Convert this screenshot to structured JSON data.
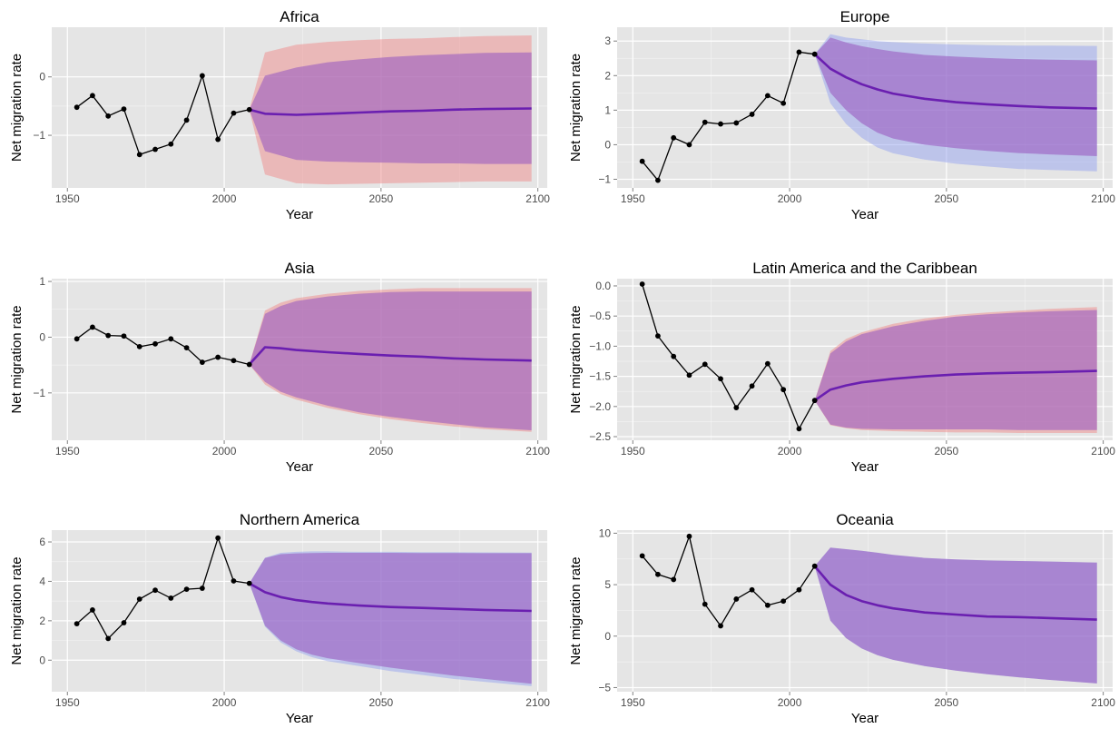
{
  "chart_data": [
    {
      "type": "line",
      "title": "Africa",
      "xlabel": "Year",
      "ylabel": "Net migration rate",
      "xlim": [
        1945,
        2103
      ],
      "ylim": [
        -1.9,
        0.85
      ],
      "xticks": [
        1950,
        2000,
        2050,
        2100
      ],
      "yticks": [
        0,
        -1
      ],
      "band_color": "#f08080",
      "observed": {
        "x": [
          1953,
          1958,
          1963,
          1968,
          1973,
          1978,
          1983,
          1988,
          1993,
          1998,
          2003,
          2008
        ],
        "y": [
          -0.52,
          -0.32,
          -0.67,
          -0.55,
          -1.33,
          -1.24,
          -1.15,
          -0.74,
          0.02,
          -1.07,
          -0.62,
          -0.56
        ]
      },
      "projection": {
        "x": [
          2008,
          2013,
          2023,
          2033,
          2043,
          2053,
          2063,
          2073,
          2083,
          2098
        ],
        "median": [
          -0.56,
          -0.63,
          -0.65,
          -0.63,
          -0.61,
          -0.59,
          -0.58,
          -0.56,
          -0.55,
          -0.54
        ],
        "band_outer_lower": [
          -0.56,
          -1.67,
          -1.82,
          -1.84,
          -1.83,
          -1.82,
          -1.81,
          -1.8,
          -1.79,
          -1.79
        ],
        "band_outer_upper": [
          -0.56,
          0.42,
          0.55,
          0.6,
          0.63,
          0.65,
          0.66,
          0.68,
          0.7,
          0.71
        ],
        "band_inner_lower": [
          -0.56,
          -1.27,
          -1.42,
          -1.45,
          -1.46,
          -1.47,
          -1.48,
          -1.48,
          -1.49,
          -1.49
        ],
        "band_inner_upper": [
          -0.56,
          0.02,
          0.16,
          0.25,
          0.3,
          0.34,
          0.37,
          0.39,
          0.41,
          0.42
        ]
      }
    },
    {
      "type": "line",
      "title": "Europe",
      "xlabel": "Year",
      "ylabel": "Net migration rate",
      "xlim": [
        1945,
        2103
      ],
      "ylim": [
        -1.25,
        3.4
      ],
      "xticks": [
        1950,
        2000,
        2050,
        2100
      ],
      "yticks": [
        3,
        2,
        1,
        0,
        -1
      ],
      "band_color": "#8c9cf0",
      "observed": {
        "x": [
          1953,
          1958,
          1963,
          1968,
          1973,
          1978,
          1983,
          1988,
          1993,
          1998,
          2003,
          2008
        ],
        "y": [
          -0.48,
          -1.03,
          0.2,
          0.0,
          0.65,
          0.6,
          0.63,
          0.88,
          1.42,
          1.2,
          2.68,
          2.62
        ]
      },
      "projection": {
        "x": [
          2008,
          2013,
          2018,
          2023,
          2028,
          2033,
          2043,
          2053,
          2063,
          2073,
          2083,
          2098
        ],
        "median": [
          2.62,
          2.2,
          1.95,
          1.75,
          1.6,
          1.48,
          1.33,
          1.23,
          1.17,
          1.12,
          1.08,
          1.05
        ],
        "band_outer_lower": [
          2.62,
          1.2,
          0.6,
          0.2,
          -0.08,
          -0.25,
          -0.43,
          -0.55,
          -0.63,
          -0.7,
          -0.73,
          -0.77
        ],
        "band_outer_upper": [
          2.62,
          3.2,
          3.1,
          3.05,
          3.0,
          2.97,
          2.93,
          2.9,
          2.88,
          2.87,
          2.87,
          2.86
        ],
        "band_inner_lower": [
          2.62,
          1.5,
          1.0,
          0.62,
          0.35,
          0.18,
          0.0,
          -0.1,
          -0.18,
          -0.24,
          -0.28,
          -0.33
        ],
        "band_inner_upper": [
          2.62,
          3.1,
          2.96,
          2.85,
          2.77,
          2.7,
          2.6,
          2.55,
          2.51,
          2.48,
          2.46,
          2.44
        ]
      }
    },
    {
      "type": "line",
      "title": "Asia",
      "xlabel": "Year",
      "ylabel": "Net migration rate",
      "xlim": [
        1945,
        2103
      ],
      "ylim": [
        -1.85,
        1.05
      ],
      "xticks": [
        1950,
        2000,
        2050,
        2100
      ],
      "yticks": [
        1,
        0,
        -1
      ],
      "band_color": "#f08080",
      "observed": {
        "x": [
          1953,
          1958,
          1963,
          1968,
          1973,
          1978,
          1983,
          1988,
          1993,
          1998,
          2003,
          2008
        ],
        "y": [
          -0.03,
          0.18,
          0.03,
          0.02,
          -0.17,
          -0.12,
          -0.03,
          -0.19,
          -0.45,
          -0.36,
          -0.42,
          -0.49
        ]
      },
      "projection": {
        "x": [
          2008,
          2013,
          2018,
          2023,
          2033,
          2043,
          2053,
          2063,
          2073,
          2083,
          2098
        ],
        "median": [
          -0.49,
          -0.18,
          -0.2,
          -0.23,
          -0.27,
          -0.3,
          -0.33,
          -0.35,
          -0.38,
          -0.4,
          -0.42
        ],
        "band_outer_lower": [
          -0.49,
          -0.85,
          -1.02,
          -1.12,
          -1.27,
          -1.38,
          -1.47,
          -1.54,
          -1.6,
          -1.65,
          -1.7
        ],
        "band_outer_upper": [
          -0.49,
          0.48,
          0.62,
          0.7,
          0.78,
          0.83,
          0.86,
          0.88,
          0.88,
          0.88,
          0.88
        ],
        "band_inner_lower": [
          -0.49,
          -0.8,
          -0.98,
          -1.08,
          -1.23,
          -1.35,
          -1.43,
          -1.5,
          -1.56,
          -1.62,
          -1.67
        ],
        "band_inner_upper": [
          -0.49,
          0.42,
          0.56,
          0.65,
          0.73,
          0.78,
          0.81,
          0.82,
          0.82,
          0.82,
          0.82
        ]
      }
    },
    {
      "type": "line",
      "title": "Latin America and the Caribbean",
      "xlabel": "Year",
      "ylabel": "Net migration rate",
      "xlim": [
        1945,
        2103
      ],
      "ylim": [
        -2.56,
        0.12
      ],
      "xticks": [
        1950,
        2000,
        2050,
        2100
      ],
      "yticks": [
        0.0,
        -0.5,
        -1.0,
        -1.5,
        -2.0,
        -2.5
      ],
      "ytick_labels": [
        "0.0",
        "−0.5",
        "−1.0",
        "−1.5",
        "−2.0",
        "−2.5"
      ],
      "band_color": "#f08080",
      "observed": {
        "x": [
          1953,
          1958,
          1963,
          1968,
          1973,
          1978,
          1983,
          1988,
          1993,
          1998,
          2003,
          2008
        ],
        "y": [
          0.03,
          -0.83,
          -1.17,
          -1.48,
          -1.3,
          -1.54,
          -2.02,
          -1.66,
          -1.29,
          -1.72,
          -2.37,
          -1.9
        ]
      },
      "projection": {
        "x": [
          2008,
          2013,
          2018,
          2023,
          2033,
          2043,
          2053,
          2063,
          2073,
          2083,
          2098
        ],
        "median": [
          -1.9,
          -1.72,
          -1.65,
          -1.6,
          -1.54,
          -1.5,
          -1.47,
          -1.45,
          -1.44,
          -1.43,
          -1.41
        ],
        "band_outer_lower": [
          -1.9,
          -2.31,
          -2.36,
          -2.39,
          -2.41,
          -2.42,
          -2.43,
          -2.43,
          -2.44,
          -2.44,
          -2.44
        ],
        "band_outer_upper": [
          -1.9,
          -1.08,
          -0.88,
          -0.77,
          -0.63,
          -0.54,
          -0.48,
          -0.44,
          -0.41,
          -0.38,
          -0.35
        ],
        "band_inner_lower": [
          -1.9,
          -2.3,
          -2.35,
          -2.37,
          -2.38,
          -2.38,
          -2.38,
          -2.38,
          -2.39,
          -2.39,
          -2.39
        ],
        "band_inner_upper": [
          -1.9,
          -1.12,
          -0.92,
          -0.8,
          -0.67,
          -0.58,
          -0.51,
          -0.47,
          -0.44,
          -0.42,
          -0.4
        ]
      }
    },
    {
      "type": "line",
      "title": "Northern America",
      "xlabel": "Year",
      "ylabel": "Net migration rate",
      "xlim": [
        1945,
        2103
      ],
      "ylim": [
        -1.6,
        6.6
      ],
      "xticks": [
        1950,
        2000,
        2050,
        2100
      ],
      "yticks": [
        6,
        4,
        2,
        0
      ],
      "band_color": "#8c9cf0",
      "observed": {
        "x": [
          1953,
          1958,
          1963,
          1968,
          1973,
          1978,
          1983,
          1988,
          1993,
          1998,
          2003,
          2008
        ],
        "y": [
          1.85,
          2.55,
          1.1,
          1.9,
          3.1,
          3.55,
          3.15,
          3.6,
          3.65,
          6.2,
          4.02,
          3.9
        ]
      },
      "projection": {
        "x": [
          2008,
          2013,
          2018,
          2023,
          2028,
          2033,
          2043,
          2053,
          2063,
          2073,
          2083,
          2098
        ],
        "median": [
          3.9,
          3.45,
          3.2,
          3.05,
          2.95,
          2.88,
          2.77,
          2.7,
          2.65,
          2.6,
          2.55,
          2.5
        ],
        "band_outer_lower": [
          3.9,
          1.7,
          0.9,
          0.45,
          0.15,
          -0.05,
          -0.3,
          -0.55,
          -0.75,
          -0.95,
          -1.1,
          -1.32
        ],
        "band_outer_upper": [
          3.9,
          5.2,
          5.45,
          5.5,
          5.52,
          5.52,
          5.5,
          5.5,
          5.48,
          5.48,
          5.47,
          5.46
        ],
        "band_inner_lower": [
          3.9,
          1.75,
          1.0,
          0.55,
          0.28,
          0.1,
          -0.15,
          -0.38,
          -0.58,
          -0.78,
          -0.95,
          -1.2
        ],
        "band_inner_upper": [
          3.9,
          5.18,
          5.38,
          5.42,
          5.44,
          5.45,
          5.45,
          5.45,
          5.44,
          5.44,
          5.43,
          5.43
        ]
      }
    },
    {
      "type": "line",
      "title": "Oceania",
      "xlabel": "Year",
      "ylabel": "Net migration rate",
      "xlim": [
        1945,
        2103
      ],
      "ylim": [
        -5.4,
        10.3
      ],
      "xticks": [
        1950,
        2000,
        2050,
        2100
      ],
      "yticks": [
        10,
        5,
        0,
        -5
      ],
      "band_color": "#8c9cf0",
      "observed": {
        "x": [
          1953,
          1958,
          1963,
          1968,
          1973,
          1978,
          1983,
          1988,
          1993,
          1998,
          2003,
          2008
        ],
        "y": [
          7.8,
          6.0,
          5.5,
          9.7,
          3.1,
          1.0,
          3.6,
          4.5,
          3.0,
          3.4,
          4.5,
          6.8
        ]
      },
      "projection": {
        "x": [
          2008,
          2013,
          2018,
          2023,
          2028,
          2033,
          2043,
          2053,
          2063,
          2073,
          2083,
          2098
        ],
        "median": [
          6.8,
          5.0,
          4.0,
          3.4,
          3.0,
          2.7,
          2.3,
          2.1,
          1.9,
          1.85,
          1.75,
          1.6
        ],
        "band_outer_lower": [
          6.8,
          1.5,
          -0.2,
          -1.2,
          -1.85,
          -2.3,
          -2.9,
          -3.35,
          -3.7,
          -4.0,
          -4.25,
          -4.6
        ],
        "band_outer_upper": [
          6.8,
          8.6,
          8.45,
          8.3,
          8.1,
          7.9,
          7.6,
          7.45,
          7.35,
          7.3,
          7.25,
          7.15
        ],
        "band_inner_lower": [
          6.8,
          1.5,
          -0.2,
          -1.2,
          -1.85,
          -2.3,
          -2.9,
          -3.35,
          -3.7,
          -4.0,
          -4.25,
          -4.6
        ],
        "band_inner_upper": [
          6.8,
          8.6,
          8.45,
          8.3,
          8.1,
          7.9,
          7.6,
          7.45,
          7.35,
          7.3,
          7.25,
          7.15
        ]
      }
    }
  ]
}
